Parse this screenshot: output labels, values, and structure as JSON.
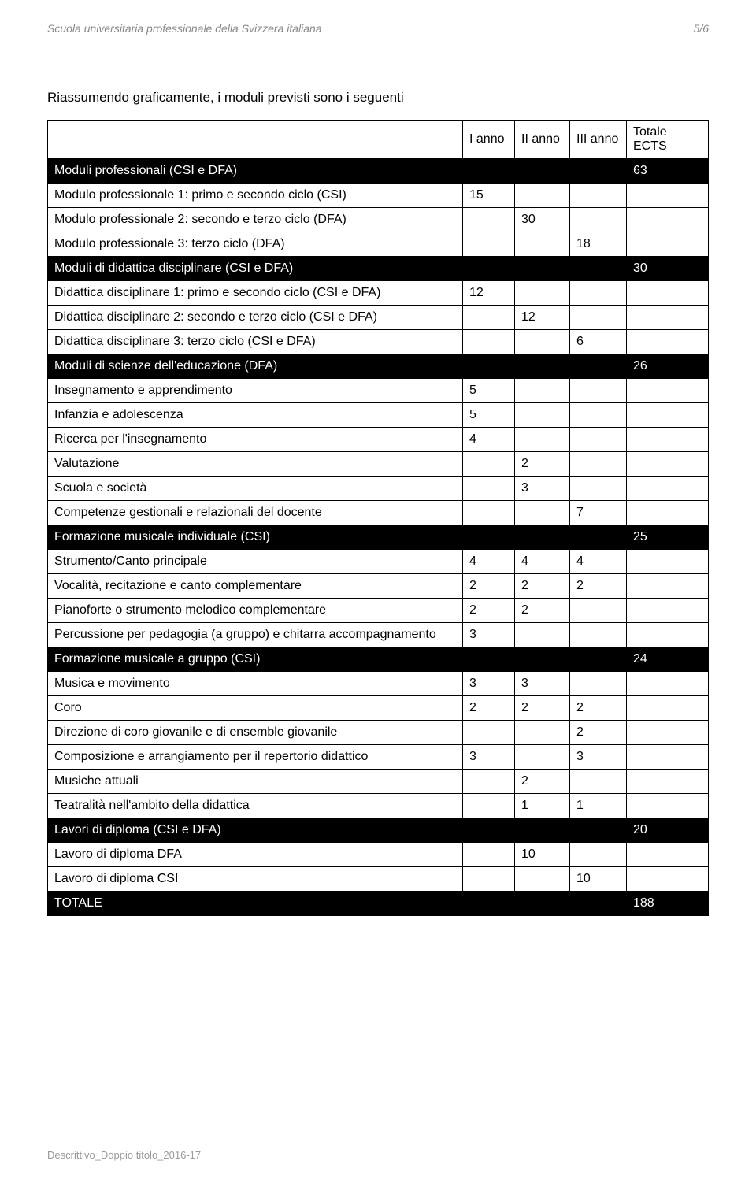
{
  "header": {
    "org": "Scuola universitaria professionale della Svizzera italiana",
    "page_no": "5/6"
  },
  "intro": "Riassumendo graficamente, i moduli previsti sono i seguenti",
  "columns": {
    "empty": "",
    "y1": "I anno",
    "y2": "II anno",
    "y3": "III anno",
    "tot": "Totale ECTS"
  },
  "rows": [
    {
      "type": "section",
      "label": "Moduli professionali (CSI e DFA)",
      "tot": "63"
    },
    {
      "type": "data",
      "label": "Modulo professionale 1: primo e secondo ciclo (CSI)",
      "y1": "15"
    },
    {
      "type": "data",
      "label": "Modulo professionale 2: secondo e terzo ciclo (DFA)",
      "y2": "30"
    },
    {
      "type": "data",
      "label": "Modulo professionale 3: terzo ciclo (DFA)",
      "y3": "18"
    },
    {
      "type": "section",
      "label": "Moduli di didattica disciplinare (CSI e DFA)",
      "tot": "30"
    },
    {
      "type": "data",
      "label": "Didattica disciplinare 1: primo e secondo ciclo (CSI e DFA)",
      "y1": "12"
    },
    {
      "type": "data",
      "label": "Didattica disciplinare 2: secondo e terzo ciclo (CSI e DFA)",
      "y2": "12"
    },
    {
      "type": "data",
      "label": "Didattica disciplinare 3: terzo ciclo (CSI e DFA)",
      "y3": "6"
    },
    {
      "type": "section",
      "label": "Moduli di scienze dell'educazione  (DFA)",
      "tot": "26"
    },
    {
      "type": "data",
      "label": "Insegnamento e apprendimento",
      "y1": "5"
    },
    {
      "type": "data",
      "label": "Infanzia e adolescenza",
      "y1": "5"
    },
    {
      "type": "data",
      "label": "Ricerca per l'insegnamento",
      "y1": "4"
    },
    {
      "type": "data",
      "label": "Valutazione",
      "y2": "2"
    },
    {
      "type": "data",
      "label": "Scuola e società",
      "y2": "3"
    },
    {
      "type": "data",
      "label": "Competenze gestionali e relazionali del docente",
      "y3": "7"
    },
    {
      "type": "section",
      "label": "Formazione musicale individuale (CSI)",
      "tot": "25"
    },
    {
      "type": "data",
      "label": "Strumento/Canto principale",
      "y1": "4",
      "y2": "4",
      "y3": "4"
    },
    {
      "type": "data",
      "label": "Vocalità, recitazione e canto complementare",
      "y1": "2",
      "y2": "2",
      "y3": "2"
    },
    {
      "type": "data",
      "label": "Pianoforte o strumento melodico complementare",
      "y1": "2",
      "y2": "2"
    },
    {
      "type": "data",
      "label": "Percussione per pedagogia (a gruppo) e chitarra accompagnamento",
      "y1": "3"
    },
    {
      "type": "section",
      "label": "Formazione musicale a gruppo  (CSI)",
      "tot": "24"
    },
    {
      "type": "data",
      "label": "Musica e movimento",
      "y1": "3",
      "y2": "3"
    },
    {
      "type": "data",
      "label": "Coro",
      "y1": "2",
      "y2": "2",
      "y3": "2"
    },
    {
      "type": "data",
      "label": "Direzione di coro giovanile e di ensemble giovanile",
      "y3": "2"
    },
    {
      "type": "data",
      "label": "Composizione e arrangiamento per il repertorio didattico",
      "y1": "3",
      "y3": "3"
    },
    {
      "type": "data",
      "label": "Musiche attuali",
      "y2": "2"
    },
    {
      "type": "data",
      "label": "Teatralità nell'ambito della didattica",
      "y2": "1",
      "y3": "1"
    },
    {
      "type": "section",
      "label": "Lavori di diploma  (CSI e DFA)",
      "tot": "20"
    },
    {
      "type": "data",
      "label": "Lavoro di diploma DFA",
      "y2": "10"
    },
    {
      "type": "data",
      "label": "Lavoro di diploma CSI",
      "y3": "10"
    },
    {
      "type": "section",
      "label": "TOTALE",
      "tot": "188"
    }
  ],
  "footer": "Descrittivo_Doppio titolo_2016-17"
}
